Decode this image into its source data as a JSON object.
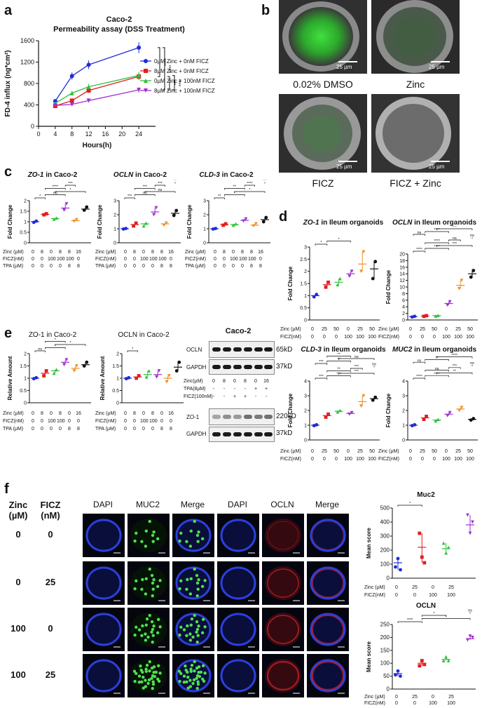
{
  "panels": {
    "a": "a",
    "b": "b",
    "c": "c",
    "d": "d",
    "e": "e",
    "f": "f"
  },
  "panel_a": {
    "title_line1": "Caco-2",
    "title_line2": "Permeability assay (DSS Treatment)",
    "xlabel": "Hours(h)",
    "ylabel": "FD-4 influx (ng*cm²)",
    "sig": [
      "****",
      "****",
      "**",
      "****"
    ]
  },
  "panel_b": {
    "scale": "25 µm",
    "captions": [
      "0.02% DMSO",
      "Zinc",
      "FICZ",
      "FICZ + Zinc"
    ]
  },
  "panel_c": {
    "titles": [
      {
        "gene": "ZO-1",
        "rest": " in Caco-2"
      },
      {
        "gene": "OCLN",
        "rest": " in Caco-2"
      },
      {
        "gene": "CLD-3",
        "rest": " in Caco-2"
      }
    ],
    "row_labels": [
      "Zinc (µM)",
      "FICZ(nM)",
      "TPA (µM)"
    ],
    "rows": [
      [
        "0",
        "8",
        "0",
        "8",
        "8",
        "16"
      ],
      [
        "0",
        "0",
        "100",
        "100",
        "100",
        "0"
      ],
      [
        "0",
        "0",
        "0",
        "0",
        "8",
        "8"
      ]
    ]
  },
  "panel_d": {
    "titles": [
      {
        "gene": "ZO-1",
        "rest": " in Ileum organoids"
      },
      {
        "gene": "OCLN",
        "rest": " in Ileum organoids"
      },
      {
        "gene": "CLD-3",
        "rest": " in Ileum organoids"
      },
      {
        "gene": "MUC2",
        "rest": " in Ileum organoids"
      }
    ],
    "row_labels": [
      "Zinc (µM)",
      "FICZ(nM)"
    ],
    "rows": [
      [
        "0",
        "25",
        "50",
        "0",
        "25",
        "50"
      ],
      [
        "0",
        "0",
        "0",
        "100",
        "100",
        "100"
      ]
    ]
  },
  "panel_e": {
    "titles": [
      "ZO-1 in Caco-2",
      "OCLN in Caco-2"
    ],
    "ylabel": "Relative Amount",
    "row_labels": [
      "Zinc (µM)",
      "FICZ(nM)",
      "TPA (µM)"
    ],
    "rows": [
      [
        "0",
        "8",
        "0",
        "8",
        "0",
        "16"
      ],
      [
        "0",
        "0",
        "100",
        "100",
        "0",
        "0"
      ],
      [
        "0",
        "0",
        "0",
        "0",
        "8",
        "8"
      ]
    ],
    "blot_title": "Caco-2",
    "blot_rows": {
      "ocln": "OCLN",
      "gapdh": "GAPDH",
      "zo1": "ZO-1",
      "kd65": "65kD",
      "kd37": "37kD",
      "kd220": "220kD"
    },
    "blot_cond_labels": [
      "Zinc(µM)",
      "TPA(8µM)",
      "FICZ(100nM)"
    ],
    "blot_cond": [
      [
        "0",
        "8",
        "0",
        "8",
        "0",
        "16"
      ],
      [
        "-",
        "-",
        "-",
        "-",
        "+",
        "+"
      ],
      [
        "-",
        "-",
        "+",
        "+",
        "-",
        "-"
      ]
    ]
  },
  "panel_f": {
    "col_zinc": "Zinc\n(µM)",
    "col_ficz": "FICZ\n(nM)",
    "col_zinc_l1": "Zinc",
    "col_zinc_l2": "(µM)",
    "col_ficz_l1": "FICZ",
    "col_ficz_l2": "(nM)",
    "stain_headers": [
      "DAPI",
      "MUC2",
      "Merge",
      "DAPI",
      "OCLN",
      "Merge"
    ],
    "rows": [
      {
        "zinc": "0",
        "ficz": "0"
      },
      {
        "zinc": "0",
        "ficz": "25"
      },
      {
        "zinc": "100",
        "ficz": "0"
      },
      {
        "zinc": "100",
        "ficz": "25"
      }
    ],
    "muc2_title": "Muc2",
    "ocln_title": "OCLN",
    "ylabel": "Mean score",
    "row_labels": [
      "Zinc (µM)",
      "FICZ(nM)"
    ],
    "cond": [
      [
        "0",
        "25",
        "0",
        "25"
      ],
      [
        "0",
        "0",
        "100",
        "100"
      ]
    ]
  },
  "chart_data": [
    {
      "type": "line",
      "title": "Caco-2 Permeability assay (DSS Treatment)",
      "xlabel": "Hours(h)",
      "ylabel": "FD-4 influx (ng*cm²)",
      "x": [
        4,
        8,
        12,
        24
      ],
      "xlim": [
        0,
        28
      ],
      "ylim": [
        0,
        1600
      ],
      "xticks": [
        0,
        4,
        8,
        12,
        16,
        20,
        24
      ],
      "yticks": [
        0,
        400,
        800,
        1200,
        1600
      ],
      "series": [
        {
          "name": "0µM Zinc + 0nM FICZ",
          "values": [
            470,
            940,
            1150,
            1470
          ],
          "color": "#1f2bd6",
          "marker": "circle"
        },
        {
          "name": "8µM Zinc + 0nM FICZ",
          "values": [
            380,
            480,
            670,
            930
          ],
          "color": "#e01f1f",
          "marker": "square"
        },
        {
          "name": "0µM Zinc + 100nM FICZ",
          "values": [
            430,
            620,
            740,
            950
          ],
          "color": "#2fbf3a",
          "marker": "triangle"
        },
        {
          "name": "8µM Zinc + 100nM FICZ",
          "values": [
            390,
            410,
            480,
            680
          ],
          "color": "#a02fd0",
          "marker": "tri-down"
        }
      ],
      "legend": "top-right"
    },
    {
      "type": "scatter",
      "title": "ZO-1 in Caco-2",
      "ylabel": "Fold Change",
      "yticks": [
        0,
        0.5,
        1.0,
        1.5,
        2.0
      ],
      "ylim": [
        0,
        2.0
      ],
      "groups": [
        [
          1.0,
          0.97,
          1.03
        ],
        [
          1.35,
          1.33,
          1.38
        ],
        [
          1.15,
          1.12,
          1.18
        ],
        [
          1.65,
          1.55,
          1.85
        ],
        [
          1.05,
          1.02,
          1.1
        ],
        [
          1.6,
          1.55,
          1.7
        ]
      ],
      "colors": [
        "#1f2bd6",
        "#e01f1f",
        "#2fbf3a",
        "#a02fd0",
        "#f0902a",
        "#111111"
      ],
      "sig": [
        "*",
        "ns",
        "*",
        "****",
        "***"
      ]
    },
    {
      "type": "scatter",
      "title": "OCLN in Caco-2",
      "ylabel": "Fold Change",
      "yticks": [
        0,
        1,
        2,
        3
      ],
      "ylim": [
        0,
        3
      ],
      "groups": [
        [
          1.0,
          0.98,
          1.02
        ],
        [
          1.3,
          1.2,
          1.4
        ],
        [
          1.35,
          1.2,
          1.4
        ],
        [
          2.2,
          2.0,
          2.5
        ],
        [
          1.35,
          1.25,
          1.4
        ],
        [
          2.1,
          1.95,
          2.3
        ]
      ],
      "colors": [
        "#1f2bd6",
        "#e01f1f",
        "#2fbf3a",
        "#a02fd0",
        "#f0902a",
        "#111111"
      ],
      "sig": [
        "***",
        "ns",
        "ns",
        "***",
        "***",
        "**"
      ]
    },
    {
      "type": "scatter",
      "title": "CLD-3 in Caco-2",
      "ylabel": "Fold Change",
      "yticks": [
        0,
        1,
        2,
        3
      ],
      "ylim": [
        0,
        3
      ],
      "groups": [
        [
          1.0,
          0.98,
          1.02
        ],
        [
          1.3,
          1.25,
          1.35
        ],
        [
          1.3,
          1.25,
          1.35
        ],
        [
          1.6,
          1.55,
          1.7
        ],
        [
          1.25,
          1.2,
          1.35
        ],
        [
          1.65,
          1.5,
          1.8
        ]
      ],
      "colors": [
        "#1f2bd6",
        "#e01f1f",
        "#2fbf3a",
        "#a02fd0",
        "#f0902a",
        "#111111"
      ],
      "sig": [
        "**",
        "*",
        "*",
        "**",
        "****",
        "***"
      ]
    },
    {
      "type": "scatter",
      "title": "ZO-1 in Ileum organoids",
      "ylabel": "Fold Change",
      "yticks": [
        0.0,
        0.5,
        1.0,
        1.5,
        2.0,
        2.5,
        3.0
      ],
      "ylim": [
        0,
        3
      ],
      "groups": [
        [
          1.0,
          0.95,
          1.05
        ],
        [
          1.45,
          1.35,
          1.55
        ],
        [
          1.55,
          1.45,
          1.7
        ],
        [
          1.9,
          1.8,
          2.0
        ],
        [
          2.3,
          2.0,
          2.8
        ],
        [
          2.1,
          1.7,
          2.4
        ]
      ],
      "colors": [
        "#1f2bd6",
        "#e01f1f",
        "#2fbf3a",
        "#a02fd0",
        "#f0902a",
        "#111111"
      ],
      "sig": [
        "*",
        "*"
      ]
    },
    {
      "type": "scatter",
      "title": "OCLN in Ileum organoids",
      "ylabel": "Fold Change",
      "yticks": [
        0,
        2,
        4,
        6,
        8,
        10,
        12,
        14,
        16,
        18,
        20
      ],
      "ylim": [
        0,
        20
      ],
      "groups": [
        [
          1.0,
          0.9,
          1.1
        ],
        [
          1.2,
          1.1,
          1.3
        ],
        [
          1.3,
          1.2,
          1.4
        ],
        [
          5.0,
          4.5,
          5.5
        ],
        [
          10.5,
          9.5,
          12.0
        ],
        [
          14.0,
          13.0,
          15.0
        ]
      ],
      "colors": [
        "#1f2bd6",
        "#e01f1f",
        "#2fbf3a",
        "#a02fd0",
        "#f0902a",
        "#111111"
      ],
      "sig": [
        "****",
        "****",
        "***",
        "****",
        "ns",
        "ns",
        "ns",
        "****",
        "***"
      ]
    },
    {
      "type": "scatter",
      "title": "CLD-3 in Ileum organoids",
      "ylabel": "Fold Change",
      "yticks": [
        0,
        1,
        2,
        3,
        4
      ],
      "ylim": [
        0,
        4
      ],
      "groups": [
        [
          1.0,
          0.97,
          1.03
        ],
        [
          1.65,
          1.55,
          1.75
        ],
        [
          1.95,
          1.9,
          2.0
        ],
        [
          1.8,
          1.75,
          1.85
        ],
        [
          2.6,
          2.3,
          3.0
        ],
        [
          2.8,
          2.7,
          2.9
        ]
      ],
      "colors": [
        "#1f2bd6",
        "#e01f1f",
        "#2fbf3a",
        "#a02fd0",
        "#f0902a",
        "#111111"
      ],
      "sig": [
        "***",
        "***",
        "***",
        "**",
        "***",
        "ns",
        "***",
        "**",
        "ns",
        "**",
        "ns"
      ]
    },
    {
      "type": "scatter",
      "title": "MUC2 in Ileum organoids",
      "ylabel": "Fold Change",
      "yticks": [
        0,
        1,
        2,
        3,
        4
      ],
      "ylim": [
        0,
        4
      ],
      "groups": [
        [
          1.0,
          0.97,
          1.03
        ],
        [
          1.5,
          1.4,
          1.6
        ],
        [
          1.35,
          1.3,
          1.4
        ],
        [
          1.75,
          1.65,
          1.85
        ],
        [
          2.1,
          2.0,
          2.2
        ],
        [
          1.4,
          1.35,
          1.45
        ]
      ],
      "colors": [
        "#1f2bd6",
        "#e01f1f",
        "#2fbf3a",
        "#a02fd0",
        "#f0902a",
        "#111111"
      ],
      "sig": [
        "****",
        "****",
        "**",
        "ns",
        "***",
        "ns",
        "ns",
        "**",
        "****",
        "****"
      ]
    },
    {
      "type": "scatter",
      "title": "ZO-1 in Caco-2",
      "ylabel": "Relative Amount",
      "yticks": [
        0.0,
        0.5,
        1.0,
        1.5,
        2.0
      ],
      "ylim": [
        0,
        2.0
      ],
      "groups": [
        [
          1.0,
          0.98,
          1.02
        ],
        [
          1.2,
          1.1,
          1.3
        ],
        [
          1.3,
          1.2,
          1.35
        ],
        [
          1.65,
          1.55,
          1.75
        ],
        [
          1.4,
          1.3,
          1.5
        ],
        [
          1.55,
          1.5,
          1.65
        ]
      ],
      "colors": [
        "#1f2bd6",
        "#e01f1f",
        "#2fbf3a",
        "#a02fd0",
        "#f0902a",
        "#111111"
      ],
      "sig": [
        "ns",
        "*",
        "*",
        "*",
        "ns"
      ]
    },
    {
      "type": "scatter",
      "title": "OCLN in Caco-2",
      "ylabel": "Relative Amount",
      "yticks": [
        0.0,
        0.5,
        1.0,
        1.5,
        2.0
      ],
      "ylim": [
        0,
        2.0
      ],
      "groups": [
        [
          1.0,
          0.98,
          1.02
        ],
        [
          1.05,
          1.0,
          1.1
        ],
        [
          1.15,
          1.05,
          1.3
        ],
        [
          1.15,
          1.05,
          1.3
        ],
        [
          1.0,
          0.85,
          1.1
        ],
        [
          1.45,
          1.3,
          1.65
        ]
      ],
      "colors": [
        "#1f2bd6",
        "#e01f1f",
        "#2fbf3a",
        "#a02fd0",
        "#f0902a",
        "#111111"
      ],
      "sig": [
        "*"
      ]
    },
    {
      "type": "scatter",
      "title": "Muc2",
      "ylabel": "Mean score",
      "yticks": [
        0,
        100,
        200,
        300,
        400,
        500
      ],
      "ylim": [
        0,
        500
      ],
      "groups": [
        [
          110,
          80,
          140,
          60
        ],
        [
          220,
          320,
          150,
          110
        ],
        [
          210,
          250,
          180,
          220
        ],
        [
          380,
          450,
          320,
          400
        ]
      ],
      "colors": [
        "#1f2bd6",
        "#e01f1f",
        "#2fbf3a",
        "#a02fd0"
      ],
      "sig": [
        "*"
      ]
    },
    {
      "type": "scatter",
      "title": "OCLN",
      "ylabel": "Mean score",
      "yticks": [
        0,
        50,
        100,
        150,
        200,
        250
      ],
      "ylim": [
        0,
        250
      ],
      "groups": [
        [
          60,
          55,
          70,
          50
        ],
        [
          100,
          90,
          110,
          95
        ],
        [
          115,
          110,
          125,
          110
        ],
        [
          195,
          190,
          205,
          200
        ]
      ],
      "colors": [
        "#1f2bd6",
        "#e01f1f",
        "#2fbf3a",
        "#a02fd0"
      ],
      "sig": [
        "****",
        "*",
        "*",
        "ns",
        "**"
      ]
    }
  ]
}
